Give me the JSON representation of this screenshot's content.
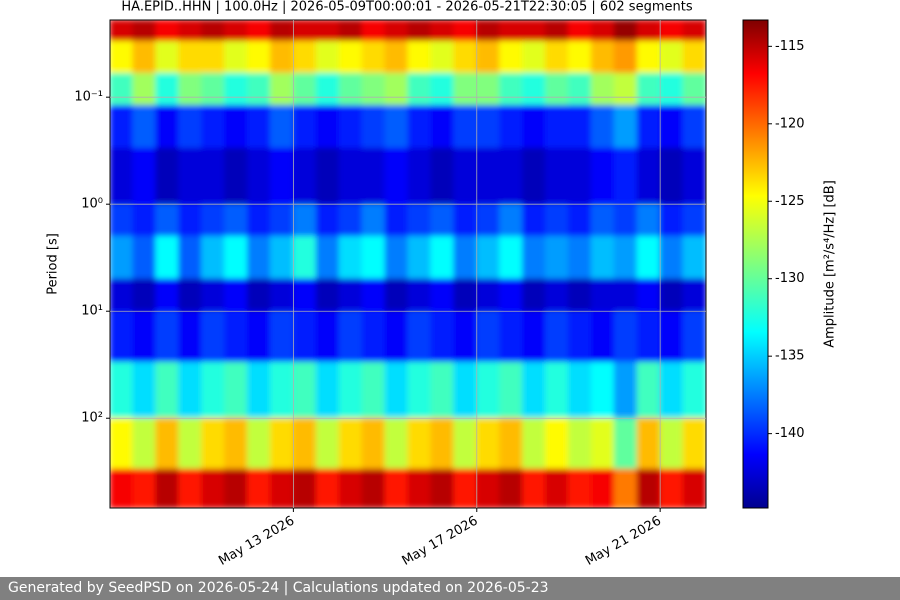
{
  "chart_data": {
    "type": "heatmap",
    "title": "HA.EPID..HHN | 100.0Hz | 2026-05-09T00:00:01 - 2026-05-21T22:30:05 | 602 segments",
    "ylabel": "Period [s]",
    "colorbar_label": "Amplitude [m²/s⁴/Hz] [dB]",
    "colormap": "jet",
    "ylog": true,
    "grid": true,
    "xlim": [
      "2026-05-09T00:00",
      "2026-05-22T00:00"
    ],
    "xticks": [
      {
        "value": "2026-05-13",
        "label": "May 13 2026"
      },
      {
        "value": "2026-05-17",
        "label": "May 17 2026"
      },
      {
        "value": "2026-05-21",
        "label": "May 21 2026"
      }
    ],
    "ylim": [
      690,
      0.019
    ],
    "yticks": [
      {
        "value": 0.1,
        "label": "10⁻¹"
      },
      {
        "value": 1,
        "label": "10⁰"
      },
      {
        "value": 10,
        "label": "10¹"
      },
      {
        "value": 100,
        "label": "10²"
      }
    ],
    "zlim": [
      -144.8,
      -113.3
    ],
    "colorbar_ticks": [
      -115,
      -120,
      -125,
      -130,
      -135,
      -140
    ],
    "times": [
      "2026-05-09T00:00",
      "2026-05-09T12:00",
      "2026-05-10T00:00",
      "2026-05-10T12:00",
      "2026-05-11T00:00",
      "2026-05-11T12:00",
      "2026-05-12T00:00",
      "2026-05-12T12:00",
      "2026-05-13T00:00",
      "2026-05-13T12:00",
      "2026-05-14T00:00",
      "2026-05-14T12:00",
      "2026-05-15T00:00",
      "2026-05-15T12:00",
      "2026-05-16T00:00",
      "2026-05-16T12:00",
      "2026-05-17T00:00",
      "2026-05-17T12:00",
      "2026-05-18T00:00",
      "2026-05-18T12:00",
      "2026-05-19T00:00",
      "2026-05-19T12:00",
      "2026-05-20T00:00",
      "2026-05-20T12:00",
      "2026-05-21T00:00",
      "2026-05-21T12:00",
      "2026-05-22T00:00"
    ],
    "periods": [
      0.019,
      0.03,
      0.06,
      0.12,
      0.3,
      1,
      2,
      5,
      10,
      30,
      100,
      300,
      690
    ],
    "values": [
      [
        -116,
        -115,
        -117,
        -116,
        -115,
        -116,
        -117,
        -115,
        -116,
        -116,
        -115,
        -117,
        -116,
        -115,
        -116,
        -117,
        -115,
        -116,
        -116,
        -115,
        -117,
        -116,
        -114,
        -116,
        -117,
        -116
      ],
      [
        -125,
        -123,
        -126,
        -124,
        -124,
        -126,
        -125,
        -123,
        -124,
        -126,
        -125,
        -124,
        -123,
        -125,
        -126,
        -124,
        -123,
        -125,
        -126,
        -124,
        -125,
        -123,
        -122,
        -125,
        -126,
        -124
      ],
      [
        -131,
        -128,
        -132,
        -129,
        -130,
        -132,
        -131,
        -128,
        -130,
        -132,
        -130,
        -129,
        -128,
        -131,
        -132,
        -129,
        -129,
        -131,
        -132,
        -130,
        -131,
        -128,
        -127,
        -131,
        -132,
        -130
      ],
      [
        -140,
        -138,
        -141,
        -139,
        -140,
        -141,
        -140,
        -138,
        -140,
        -141,
        -140,
        -139,
        -138,
        -140,
        -141,
        -139,
        -139,
        -140,
        -141,
        -140,
        -140,
        -138,
        -136,
        -140,
        -141,
        -139
      ],
      [
        -142,
        -141,
        -143,
        -142,
        -142,
        -143,
        -142,
        -141,
        -142,
        -143,
        -142,
        -142,
        -141,
        -142,
        -143,
        -142,
        -142,
        -142,
        -143,
        -142,
        -142,
        -141,
        -140,
        -142,
        -143,
        -142
      ],
      [
        -139,
        -140,
        -138,
        -140,
        -139,
        -138,
        -140,
        -139,
        -137,
        -140,
        -139,
        -137,
        -140,
        -139,
        -138,
        -140,
        -139,
        -137,
        -140,
        -139,
        -140,
        -138,
        -139,
        -137,
        -140,
        -139
      ],
      [
        -136,
        -138,
        -133,
        -138,
        -135,
        -133,
        -137,
        -135,
        -132,
        -137,
        -134,
        -133,
        -137,
        -135,
        -133,
        -137,
        -135,
        -133,
        -137,
        -136,
        -137,
        -135,
        -136,
        -133,
        -137,
        -135
      ],
      [
        -142,
        -143,
        -141,
        -143,
        -142,
        -141,
        -143,
        -142,
        -141,
        -143,
        -142,
        -141,
        -143,
        -142,
        -141,
        -143,
        -142,
        -141,
        -143,
        -142,
        -143,
        -142,
        -142,
        -141,
        -143,
        -142
      ],
      [
        -140,
        -141,
        -139,
        -141,
        -139,
        -140,
        -141,
        -139,
        -140,
        -141,
        -139,
        -140,
        -141,
        -139,
        -140,
        -141,
        -139,
        -140,
        -141,
        -139,
        -140,
        -141,
        -139,
        -140,
        -141,
        -139
      ],
      [
        -132,
        -134,
        -131,
        -134,
        -132,
        -131,
        -134,
        -132,
        -131,
        -134,
        -132,
        -131,
        -134,
        -132,
        -131,
        -134,
        -132,
        -131,
        -134,
        -132,
        -134,
        -133,
        -136,
        -131,
        -134,
        -132
      ],
      [
        -125,
        -127,
        -123,
        -127,
        -124,
        -123,
        -127,
        -124,
        -123,
        -127,
        -124,
        -123,
        -127,
        -124,
        -123,
        -127,
        -124,
        -123,
        -127,
        -125,
        -127,
        -126,
        -130,
        -123,
        -127,
        -124
      ],
      [
        -117,
        -118,
        -115,
        -118,
        -116,
        -115,
        -118,
        -116,
        -115,
        -118,
        -116,
        -115,
        -118,
        -116,
        -115,
        -118,
        -116,
        -115,
        -118,
        -116,
        -118,
        -117,
        -121,
        -115,
        -118,
        -116
      ]
    ]
  },
  "footer": {
    "text": "Generated by SeedPSD on 2026-05-24 | Calculations updated on 2026-05-23"
  }
}
